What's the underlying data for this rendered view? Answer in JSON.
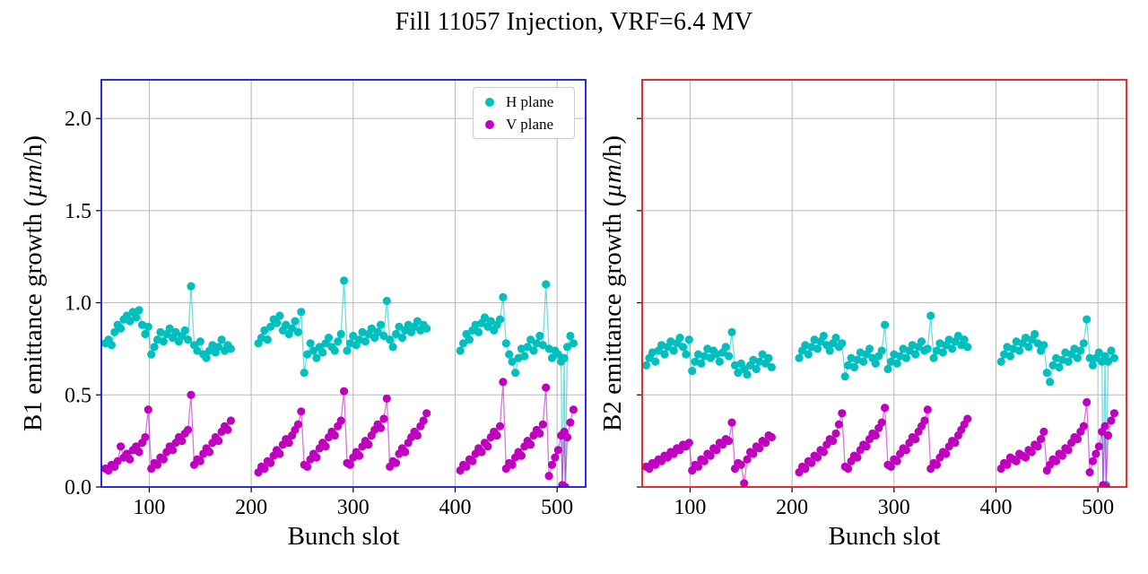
{
  "title": "Fill 11057 Injection, VRF=6.4 MV",
  "colors": {
    "h_plane": "#00bfbf",
    "v_plane": "#bf00bf",
    "b1_spine": "#1212e8",
    "b2_spine": "#e81414",
    "grid": "#b7b7b7",
    "text": "#000000",
    "background": "#ffffff"
  },
  "legend": {
    "items": [
      {
        "label": "H plane",
        "color": "#00bfbf"
      },
      {
        "label": "V plane",
        "color": "#bf00bf"
      }
    ]
  },
  "x_slots": [
    57,
    60,
    63,
    66,
    69,
    72,
    75,
    78,
    81,
    84,
    87,
    90,
    93,
    96,
    99,
    102,
    105,
    108,
    111,
    114,
    117,
    120,
    123,
    126,
    129,
    132,
    135,
    138,
    141,
    144,
    147,
    150,
    153,
    156,
    159,
    162,
    165,
    168,
    171,
    174,
    177,
    180,
    207,
    210,
    213,
    216,
    219,
    222,
    225,
    228,
    231,
    234,
    237,
    240,
    243,
    246,
    249,
    252,
    255,
    258,
    261,
    264,
    267,
    270,
    273,
    276,
    279,
    282,
    285,
    288,
    291,
    294,
    297,
    300,
    303,
    306,
    309,
    312,
    315,
    318,
    321,
    324,
    327,
    330,
    333,
    336,
    339,
    342,
    345,
    348,
    351,
    354,
    357,
    360,
    363,
    366,
    369,
    372,
    405,
    408,
    411,
    414,
    417,
    420,
    423,
    426,
    429,
    432,
    435,
    438,
    441,
    444,
    447,
    450,
    453,
    456,
    459,
    462,
    465,
    468,
    471,
    474,
    477,
    480,
    483,
    486,
    489,
    492,
    495,
    498,
    501,
    504,
    505,
    507,
    508,
    510,
    513,
    516
  ],
  "chart_data": [
    {
      "type": "scatter",
      "beam": "B1",
      "marker": "o",
      "linestyle": "-",
      "xlabel": "Bunch slot",
      "ylabel_parts": [
        "B1 emittance growth (",
        "µm",
        "/h)"
      ],
      "xlim": [
        53,
        528
      ],
      "ylim": [
        0,
        2.21
      ],
      "xticks": [
        100,
        200,
        300,
        400,
        500
      ],
      "xtick_labels": [
        "100",
        "200",
        "300",
        "400",
        "500"
      ],
      "yticks": [
        0,
        0.5,
        1.0,
        1.5,
        2.0
      ],
      "ytick_labels": [
        "0.0",
        "0.5",
        "1.0",
        "1.5",
        "2.0"
      ],
      "show_ytick_labels": true,
      "grid": true,
      "legend_position": "upper right",
      "spine_color": "#1212e8",
      "x_ref": "x_slots",
      "series": [
        {
          "name": "H plane",
          "color": "#00bfbf",
          "values": [
            0.78,
            0.8,
            0.77,
            0.84,
            0.88,
            0.86,
            0.91,
            0.93,
            0.9,
            0.95,
            0.92,
            0.96,
            0.88,
            0.83,
            0.87,
            0.72,
            0.76,
            0.8,
            0.84,
            0.79,
            0.83,
            0.86,
            0.81,
            0.84,
            0.79,
            0.82,
            0.85,
            0.8,
            1.09,
            0.77,
            0.74,
            0.79,
            0.72,
            0.7,
            0.74,
            0.77,
            0.73,
            0.76,
            0.8,
            0.74,
            0.77,
            0.75,
            0.78,
            0.81,
            0.85,
            0.8,
            0.87,
            0.91,
            0.89,
            0.93,
            0.85,
            0.88,
            0.83,
            0.86,
            0.9,
            0.84,
            0.95,
            0.62,
            0.72,
            0.78,
            0.74,
            0.7,
            0.76,
            0.73,
            0.78,
            0.81,
            0.76,
            0.74,
            0.79,
            0.83,
            1.12,
            0.74,
            0.78,
            0.82,
            0.77,
            0.8,
            0.84,
            0.79,
            0.83,
            0.86,
            0.81,
            0.84,
            0.88,
            0.82,
            1.01,
            0.8,
            0.76,
            0.83,
            0.87,
            0.81,
            0.85,
            0.88,
            0.84,
            0.87,
            0.9,
            0.85,
            0.88,
            0.86,
            0.74,
            0.78,
            0.83,
            0.8,
            0.85,
            0.88,
            0.84,
            0.89,
            0.92,
            0.87,
            0.9,
            0.85,
            0.88,
            0.91,
            1.03,
            0.78,
            0.72,
            0.68,
            0.62,
            0.7,
            0.75,
            0.71,
            0.76,
            0.8,
            0.74,
            0.78,
            0.82,
            0.77,
            1.1,
            0.75,
            0.7,
            0.74,
            0.72,
            0.68,
            0.0,
            0.7,
            0.0,
            0.76,
            0.82,
            0.78
          ]
        },
        {
          "name": "V plane",
          "color": "#bf00bf",
          "values": [
            0.1,
            0.09,
            0.12,
            0.11,
            0.14,
            0.22,
            0.16,
            0.18,
            0.15,
            0.2,
            0.22,
            0.19,
            0.24,
            0.27,
            0.42,
            0.1,
            0.13,
            0.12,
            0.16,
            0.15,
            0.19,
            0.22,
            0.2,
            0.24,
            0.27,
            0.25,
            0.29,
            0.31,
            0.5,
            0.12,
            0.15,
            0.14,
            0.18,
            0.21,
            0.19,
            0.24,
            0.27,
            0.25,
            0.3,
            0.33,
            0.31,
            0.36,
            0.08,
            0.11,
            0.1,
            0.14,
            0.13,
            0.17,
            0.2,
            0.18,
            0.23,
            0.26,
            0.24,
            0.28,
            0.31,
            0.34,
            0.41,
            0.12,
            0.11,
            0.15,
            0.18,
            0.16,
            0.21,
            0.24,
            0.22,
            0.27,
            0.3,
            0.28,
            0.33,
            0.36,
            0.52,
            0.13,
            0.12,
            0.16,
            0.19,
            0.17,
            0.22,
            0.25,
            0.23,
            0.28,
            0.31,
            0.34,
            0.32,
            0.37,
            0.48,
            0.11,
            0.14,
            0.13,
            0.18,
            0.21,
            0.19,
            0.24,
            0.27,
            0.3,
            0.28,
            0.33,
            0.36,
            0.4,
            0.09,
            0.12,
            0.11,
            0.15,
            0.14,
            0.18,
            0.21,
            0.19,
            0.24,
            0.22,
            0.27,
            0.3,
            0.28,
            0.33,
            0.57,
            0.1,
            0.13,
            0.12,
            0.16,
            0.19,
            0.17,
            0.22,
            0.25,
            0.23,
            0.28,
            0.31,
            0.29,
            0.34,
            0.54,
            0.06,
            0.12,
            0.16,
            0.2,
            0.28,
            0.01,
            0.3,
            0.0,
            0.27,
            0.35,
            0.42
          ]
        }
      ]
    },
    {
      "type": "scatter",
      "beam": "B2",
      "marker": "o",
      "linestyle": "-",
      "xlabel": "Bunch slot",
      "ylabel_parts": [
        "B2 emittance growth (",
        "µm",
        "/h)"
      ],
      "xlim": [
        53,
        528
      ],
      "ylim": [
        0,
        2.21
      ],
      "xticks": [
        100,
        200,
        300,
        400,
        500
      ],
      "xtick_labels": [
        "100",
        "200",
        "300",
        "400",
        "500"
      ],
      "yticks": [
        0,
        0.5,
        1.0,
        1.5,
        2.0
      ],
      "ytick_labels": [
        "0.0",
        "0.5",
        "1.0",
        "1.5",
        "2.0"
      ],
      "show_ytick_labels": false,
      "grid": true,
      "legend_position": "none",
      "spine_color": "#e81414",
      "x_ref": "x_slots",
      "series": [
        {
          "name": "H plane",
          "color": "#00bfbf",
          "values": [
            0.66,
            0.7,
            0.73,
            0.68,
            0.74,
            0.77,
            0.72,
            0.76,
            0.79,
            0.74,
            0.78,
            0.81,
            0.76,
            0.72,
            0.8,
            0.63,
            0.68,
            0.72,
            0.67,
            0.71,
            0.75,
            0.7,
            0.74,
            0.72,
            0.68,
            0.73,
            0.76,
            0.71,
            0.84,
            0.66,
            0.62,
            0.67,
            0.64,
            0.61,
            0.66,
            0.69,
            0.64,
            0.68,
            0.72,
            0.67,
            0.7,
            0.65,
            0.7,
            0.74,
            0.77,
            0.72,
            0.76,
            0.8,
            0.75,
            0.79,
            0.82,
            0.77,
            0.74,
            0.78,
            0.81,
            0.76,
            0.78,
            0.6,
            0.66,
            0.7,
            0.65,
            0.69,
            0.73,
            0.68,
            0.72,
            0.75,
            0.7,
            0.67,
            0.71,
            0.74,
            0.88,
            0.64,
            0.68,
            0.72,
            0.67,
            0.71,
            0.75,
            0.7,
            0.74,
            0.77,
            0.72,
            0.76,
            0.79,
            0.74,
            0.75,
            0.93,
            0.7,
            0.74,
            0.78,
            0.73,
            0.77,
            0.8,
            0.75,
            0.79,
            0.82,
            0.77,
            0.8,
            0.76,
            0.68,
            0.72,
            0.76,
            0.71,
            0.75,
            0.79,
            0.74,
            0.78,
            0.81,
            0.76,
            0.8,
            0.83,
            0.78,
            0.74,
            0.77,
            0.62,
            0.57,
            0.66,
            0.7,
            0.65,
            0.69,
            0.73,
            0.68,
            0.72,
            0.75,
            0.7,
            0.74,
            0.78,
            0.91,
            0.7,
            0.66,
            0.7,
            0.73,
            0.68,
            0.0,
            0.71,
            0.01,
            0.68,
            0.74,
            0.7
          ]
        },
        {
          "name": "V plane",
          "color": "#bf00bf",
          "values": [
            0.11,
            0.1,
            0.13,
            0.12,
            0.15,
            0.14,
            0.17,
            0.16,
            0.19,
            0.18,
            0.21,
            0.2,
            0.23,
            0.22,
            0.24,
            0.09,
            0.12,
            0.11,
            0.15,
            0.14,
            0.18,
            0.17,
            0.21,
            0.2,
            0.24,
            0.23,
            0.26,
            0.25,
            0.35,
            0.1,
            0.13,
            0.12,
            0.02,
            0.15,
            0.19,
            0.18,
            0.22,
            0.21,
            0.25,
            0.24,
            0.28,
            0.27,
            0.08,
            0.11,
            0.1,
            0.14,
            0.13,
            0.17,
            0.16,
            0.2,
            0.19,
            0.23,
            0.26,
            0.25,
            0.29,
            0.34,
            0.4,
            0.11,
            0.1,
            0.14,
            0.17,
            0.16,
            0.2,
            0.23,
            0.22,
            0.26,
            0.29,
            0.28,
            0.32,
            0.35,
            0.43,
            0.12,
            0.11,
            0.15,
            0.14,
            0.18,
            0.21,
            0.2,
            0.24,
            0.27,
            0.26,
            0.3,
            0.33,
            0.36,
            0.42,
            0.1,
            0.13,
            0.12,
            0.16,
            0.19,
            0.18,
            0.22,
            0.25,
            0.24,
            0.28,
            0.31,
            0.34,
            0.37,
            0.1,
            0.13,
            0.12,
            0.16,
            0.15,
            0.14,
            0.18,
            0.17,
            0.16,
            0.2,
            0.19,
            0.23,
            0.22,
            0.26,
            0.3,
            0.09,
            0.12,
            0.15,
            0.14,
            0.18,
            0.17,
            0.21,
            0.2,
            0.24,
            0.27,
            0.26,
            0.3,
            0.33,
            0.46,
            0.08,
            0.14,
            0.18,
            0.22,
            0.3,
            0.01,
            0.33,
            0.0,
            0.28,
            0.36,
            0.4
          ]
        }
      ]
    }
  ]
}
